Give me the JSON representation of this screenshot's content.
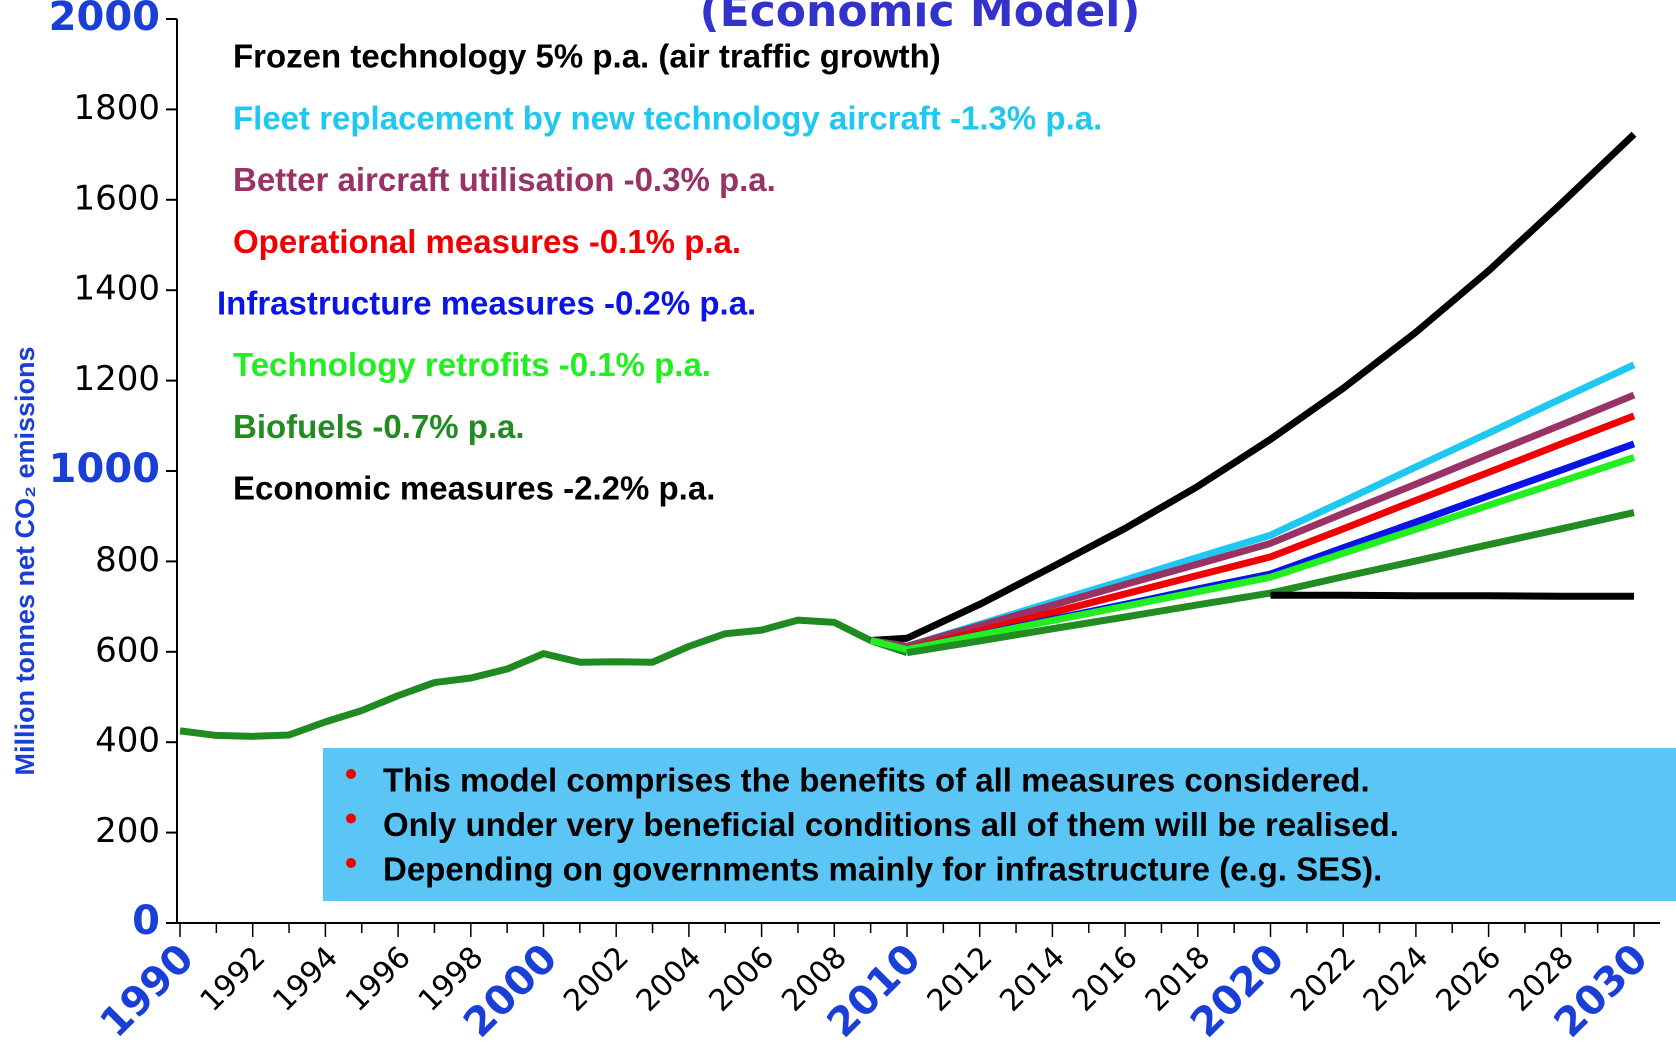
{
  "chart_data": {
    "type": "line",
    "title": "(Economic Model)",
    "ylabel": "Million tonnes net CO₂ emissions",
    "x": [
      1990,
      1991,
      1992,
      1993,
      1994,
      1995,
      1996,
      1997,
      1998,
      1999,
      2000,
      2001,
      2002,
      2003,
      2004,
      2005,
      2006,
      2007,
      2008,
      2009,
      2010,
      2012,
      2014,
      2016,
      2018,
      2020,
      2022,
      2024,
      2026,
      2028,
      2030
    ],
    "series": [
      {
        "color": "#1f8a1f",
        "values": [
          425,
          415,
          413,
          416,
          445,
          470,
          503,
          532,
          542,
          562,
          596,
          577,
          578,
          577,
          612,
          640,
          648,
          670,
          665,
          625,
          598,
          null,
          null,
          null,
          null,
          null,
          null,
          null,
          null,
          null,
          null
        ]
      },
      {
        "name": "Frozen technology 5% p.a. (air traffic growth)",
        "color": "#000000",
        "values": [
          null,
          null,
          null,
          null,
          null,
          null,
          null,
          null,
          null,
          null,
          null,
          null,
          null,
          null,
          null,
          null,
          null,
          null,
          null,
          625,
          630,
          705,
          788,
          873,
          966,
          1070,
          1183,
          1307,
          1443,
          1592,
          1745
        ]
      },
      {
        "name": "Fleet replacement by new technology aircraft -1.3% p.a.",
        "color": "#1ec8f0",
        "values": [
          null,
          null,
          null,
          null,
          null,
          null,
          null,
          null,
          null,
          null,
          null,
          null,
          null,
          null,
          null,
          null,
          null,
          null,
          null,
          625,
          612,
          661,
          710,
          759,
          809,
          858,
          933,
          1009,
          1084,
          1160,
          1235
        ]
      },
      {
        "name": "Better aircraft utilisation -0.3% p.a.",
        "color": "#993366",
        "values": [
          null,
          null,
          null,
          null,
          null,
          null,
          null,
          null,
          null,
          null,
          null,
          null,
          null,
          null,
          null,
          null,
          null,
          null,
          null,
          625,
          612,
          658,
          703,
          749,
          794,
          840,
          906,
          971,
          1037,
          1102,
          1168
        ]
      },
      {
        "name": "Operational measures -0.1% p.a.",
        "color": "#f00000",
        "values": [
          null,
          null,
          null,
          null,
          null,
          null,
          null,
          null,
          null,
          null,
          null,
          null,
          null,
          null,
          null,
          null,
          null,
          null,
          null,
          625,
          605,
          646,
          687,
          728,
          769,
          810,
          872,
          935,
          997,
          1060,
          1122
        ]
      },
      {
        "name": "Infrastructure measures -0.2% p.a.",
        "color": "#0a14e6",
        "values": [
          null,
          null,
          null,
          null,
          null,
          null,
          null,
          null,
          null,
          null,
          null,
          null,
          null,
          null,
          null,
          null,
          null,
          null,
          null,
          625,
          605,
          638,
          672,
          705,
          739,
          772,
          830,
          887,
          945,
          1002,
          1060
        ]
      },
      {
        "name": "Technology retrofits -0.1% p.a.",
        "color": "#22ee22",
        "values": [
          null,
          null,
          null,
          null,
          null,
          null,
          null,
          null,
          null,
          null,
          null,
          null,
          null,
          null,
          null,
          null,
          null,
          null,
          null,
          625,
          605,
          637,
          669,
          701,
          733,
          765,
          818,
          871,
          924,
          977,
          1030
        ]
      },
      {
        "name": "Biofuels -0.7% p.a.",
        "color": "#228b22",
        "values": [
          null,
          null,
          null,
          null,
          null,
          null,
          null,
          null,
          null,
          null,
          null,
          null,
          null,
          null,
          null,
          null,
          null,
          null,
          null,
          null,
          598,
          624,
          651,
          677,
          704,
          730,
          766,
          801,
          837,
          872,
          908
        ]
      },
      {
        "name": "Economic measures -2.2% p.a.",
        "color": "#000000",
        "values": [
          null,
          null,
          null,
          null,
          null,
          null,
          null,
          null,
          null,
          null,
          null,
          null,
          null,
          null,
          null,
          null,
          null,
          null,
          null,
          null,
          null,
          null,
          null,
          null,
          null,
          725,
          725,
          724,
          724,
          723,
          723
        ]
      }
    ],
    "xlim": [
      1990,
      2030
    ],
    "xticks": [
      1990,
      1992,
      1994,
      1996,
      1998,
      2000,
      2002,
      2004,
      2006,
      2008,
      2010,
      2012,
      2014,
      2016,
      2018,
      2020,
      2022,
      2024,
      2026,
      2028,
      2030
    ],
    "xminorticks": [
      1991,
      1993,
      1995,
      1997,
      1999,
      2001,
      2003,
      2005,
      2007,
      2009,
      2011,
      2013,
      2015,
      2017,
      2019,
      2021,
      2023,
      2025,
      2027,
      2029
    ],
    "ylim": [
      0,
      2000
    ],
    "yticks": [
      0,
      200,
      400,
      600,
      800,
      1000,
      1200,
      1400,
      1600,
      1800,
      2000
    ],
    "notes": [
      "This model comprises the benefits of all measures considered.",
      "Only under very beneficial conditions all of them will be realised.",
      "Depending on governments mainly for infrastructure (e.g. SES)."
    ]
  }
}
